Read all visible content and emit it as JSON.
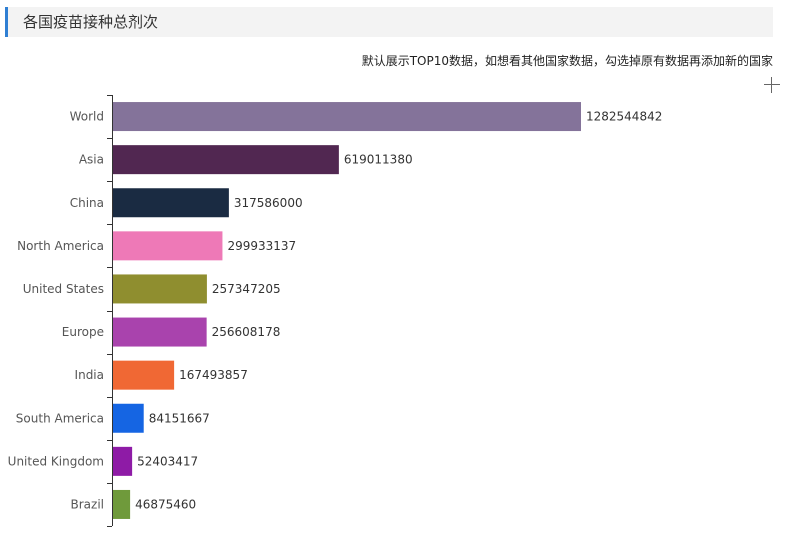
{
  "header": {
    "title": "各国疫苗接种总剂次"
  },
  "notice": "默认展示TOP10数据，如想看其他国家数据，勾选掉原有数据再添加新的国家",
  "toolbar": {
    "add_icon": "plus-icon"
  },
  "chart_data": {
    "type": "bar",
    "orientation": "horizontal",
    "categories": [
      "World",
      "Asia",
      "China",
      "North America",
      "United States",
      "Europe",
      "India",
      "South America",
      "United Kingdom",
      "Brazil"
    ],
    "values": [
      1282544842,
      619011380,
      317586000,
      299933137,
      257347205,
      256608178,
      167493857,
      84151667,
      52403417,
      46875460
    ],
    "colors": [
      "#84739a",
      "#512751",
      "#1a2b42",
      "#ee79b7",
      "#8f8e2f",
      "#a943ad",
      "#f06834",
      "#1565e3",
      "#8e1ba6",
      "#6f9a3b"
    ],
    "title": "",
    "xlabel": "",
    "ylabel": "",
    "grid": false,
    "data_labels": true
  }
}
